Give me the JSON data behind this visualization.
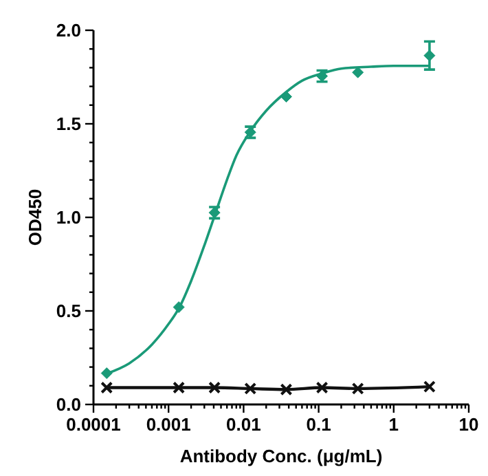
{
  "chart_data": {
    "type": "scatter",
    "xlabel": "Antibody Conc. (μg/mL)",
    "ylabel": "OD450",
    "log": "x",
    "grid": false,
    "xlim": [
      0.0001,
      10
    ],
    "ylim": [
      0,
      2.0
    ],
    "xticks": [
      {
        "value": 0.0001,
        "label": "0.0001"
      },
      {
        "value": 0.0002,
        "label": null
      },
      {
        "value": 0.0003,
        "label": null
      },
      {
        "value": 0.0004,
        "label": null
      },
      {
        "value": 0.0005,
        "label": null
      },
      {
        "value": 0.0006,
        "label": null
      },
      {
        "value": 0.0007,
        "label": null
      },
      {
        "value": 0.0008,
        "label": null
      },
      {
        "value": 0.0009,
        "label": null
      },
      {
        "value": 0.001,
        "label": "0.001"
      },
      {
        "value": 0.002,
        "label": null
      },
      {
        "value": 0.003,
        "label": null
      },
      {
        "value": 0.004,
        "label": null
      },
      {
        "value": 0.005,
        "label": null
      },
      {
        "value": 0.006,
        "label": null
      },
      {
        "value": 0.007,
        "label": null
      },
      {
        "value": 0.008,
        "label": null
      },
      {
        "value": 0.009,
        "label": null
      },
      {
        "value": 0.01,
        "label": "0.01"
      },
      {
        "value": 0.02,
        "label": null
      },
      {
        "value": 0.03,
        "label": null
      },
      {
        "value": 0.04,
        "label": null
      },
      {
        "value": 0.05,
        "label": null
      },
      {
        "value": 0.06,
        "label": null
      },
      {
        "value": 0.07,
        "label": null
      },
      {
        "value": 0.08,
        "label": null
      },
      {
        "value": 0.09,
        "label": null
      },
      {
        "value": 0.1,
        "label": "0.1"
      },
      {
        "value": 0.2,
        "label": null
      },
      {
        "value": 0.3,
        "label": null
      },
      {
        "value": 0.4,
        "label": null
      },
      {
        "value": 0.5,
        "label": null
      },
      {
        "value": 0.6,
        "label": null
      },
      {
        "value": 0.7,
        "label": null
      },
      {
        "value": 0.8,
        "label": null
      },
      {
        "value": 0.9,
        "label": null
      },
      {
        "value": 1,
        "label": "1"
      },
      {
        "value": 2,
        "label": null
      },
      {
        "value": 3,
        "label": null
      },
      {
        "value": 4,
        "label": null
      },
      {
        "value": 5,
        "label": null
      },
      {
        "value": 6,
        "label": null
      },
      {
        "value": 7,
        "label": null
      },
      {
        "value": 8,
        "label": null
      },
      {
        "value": 9,
        "label": null
      },
      {
        "value": 10,
        "label": "10"
      }
    ],
    "yticks": [
      {
        "value": 0,
        "label": "0.0"
      },
      {
        "value": 0.1,
        "label": null
      },
      {
        "value": 0.2,
        "label": null
      },
      {
        "value": 0.3,
        "label": null
      },
      {
        "value": 0.4,
        "label": null
      },
      {
        "value": 0.5,
        "label": "0.5"
      },
      {
        "value": 0.6,
        "label": null
      },
      {
        "value": 0.7,
        "label": null
      },
      {
        "value": 0.8,
        "label": null
      },
      {
        "value": 0.9,
        "label": null
      },
      {
        "value": 1,
        "label": "1.0"
      },
      {
        "value": 1.1,
        "label": null
      },
      {
        "value": 1.2,
        "label": null
      },
      {
        "value": 1.3,
        "label": null
      },
      {
        "value": 1.4,
        "label": null
      },
      {
        "value": 1.5,
        "label": "1.5"
      },
      {
        "value": 1.6,
        "label": null
      },
      {
        "value": 1.7,
        "label": null
      },
      {
        "value": 1.8,
        "label": null
      },
      {
        "value": 1.9,
        "label": null
      },
      {
        "value": 2,
        "label": "2.0"
      }
    ],
    "series": [
      {
        "type": "line",
        "color": "#1a9a78",
        "marker": "none",
        "line_style": "solid",
        "x": [
          0.00015,
          0.0003,
          0.0006,
          0.001,
          0.0014,
          0.002,
          0.003,
          0.0042,
          0.006,
          0.008,
          0.0123,
          0.02,
          0.037,
          0.06,
          0.113,
          0.2,
          0.5,
          1,
          3
        ],
        "values": [
          0.165,
          0.22,
          0.32,
          0.43,
          0.52,
          0.66,
          0.85,
          1.02,
          1.2,
          1.33,
          1.46,
          1.57,
          1.67,
          1.73,
          1.77,
          1.795,
          1.805,
          1.81,
          1.81
        ]
      },
      {
        "color": "#1a9a78",
        "marker": "diamond",
        "x": [
          0.00015,
          0.00137,
          0.0041,
          0.0123,
          0.037,
          0.111,
          0.333,
          3
        ],
        "values": [
          0.167,
          0.52,
          1.025,
          1.455,
          1.645,
          1.755,
          1.775,
          1.865
        ],
        "errors": [
          null,
          null,
          0.03,
          0.03,
          null,
          0.03,
          null,
          0.075
        ]
      },
      {
        "type": "line",
        "color": "#111111",
        "marker": "cross",
        "line_style": "solid",
        "x": [
          0.00015,
          0.00137,
          0.0041,
          0.0123,
          0.037,
          0.111,
          0.333,
          3
        ],
        "values": [
          0.09,
          0.09,
          0.09,
          0.085,
          0.08,
          0.09,
          0.085,
          0.095
        ]
      }
    ]
  }
}
